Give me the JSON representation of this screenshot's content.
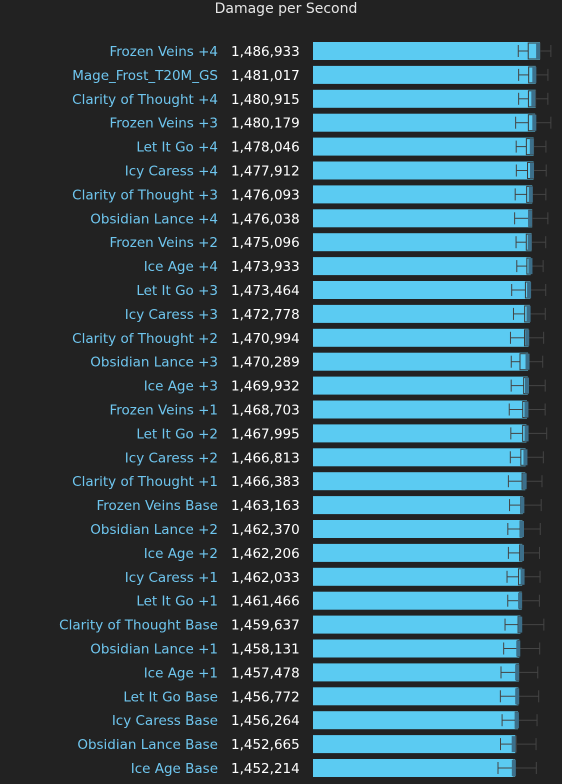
{
  "chart_data": {
    "type": "bar",
    "title": "Damage per Second",
    "categories": [
      "Frozen Veins +4",
      "Mage_Frost_T20M_GS",
      "Clarity of Thought +4",
      "Frozen Veins +3",
      "Let It Go +4",
      "Icy Caress +4",
      "Clarity of Thought +3",
      "Obsidian Lance +4",
      "Frozen Veins +2",
      "Ice Age +4",
      "Let It Go +3",
      "Icy Caress +3",
      "Clarity of Thought +2",
      "Obsidian Lance +3",
      "Ice Age +3",
      "Frozen Veins +1",
      "Let It Go +2",
      "Icy Caress +2",
      "Clarity of Thought +1",
      "Frozen Veins Base",
      "Obsidian Lance +2",
      "Ice Age +2",
      "Icy Caress +1",
      "Let It Go +1",
      "Clarity of Thought Base",
      "Obsidian Lance +1",
      "Ice Age +1",
      "Let It Go Base",
      "Icy Caress Base",
      "Obsidian Lance Base",
      "Ice Age Base"
    ],
    "values": [
      1486933,
      1481017,
      1480915,
      1480179,
      1478046,
      1477912,
      1476093,
      1476038,
      1475096,
      1473933,
      1473464,
      1472778,
      1470994,
      1470289,
      1469932,
      1468703,
      1467995,
      1466813,
      1466383,
      1463163,
      1462370,
      1462206,
      1462033,
      1461466,
      1459637,
      1458131,
      1457478,
      1456772,
      1456264,
      1452665,
      1452214
    ],
    "value_labels": [
      "1,486,933",
      "1,481,017",
      "1,480,915",
      "1,480,179",
      "1,478,046",
      "1,477,912",
      "1,476,093",
      "1,476,038",
      "1,475,096",
      "1,473,933",
      "1,473,464",
      "1,472,778",
      "1,470,994",
      "1,470,289",
      "1,469,932",
      "1,468,703",
      "1,467,995",
      "1,466,813",
      "1,466,383",
      "1,463,163",
      "1,462,370",
      "1,462,206",
      "1,462,033",
      "1,461,466",
      "1,459,637",
      "1,458,131",
      "1,457,478",
      "1,456,772",
      "1,456,264",
      "1,452,665",
      "1,452,214"
    ],
    "box_low": [
      1456600,
      1457100,
      1457100,
      1452900,
      1453700,
      1453900,
      1452300,
      1451500,
      1453500,
      1454500,
      1447400,
      1449900,
      1445700,
      1446800,
      1446700,
      1444000,
      1446200,
      1445500,
      1442800,
      1444400,
      1442000,
      1442800,
      1440900,
      1441900,
      1438100,
      1436200,
      1432500,
      1431600,
      1434000,
      1431800,
      1428300
    ],
    "box_q1": [
      1470500,
      1471100,
      1470800,
      1470700,
      1467900,
      1469500,
      1468300,
      1471200,
      1467800,
      1468600,
      1466600,
      1465500,
      1465300,
      1459000,
      1464100,
      1462800,
      1462700,
      1460200,
      1461900,
      1459900,
      1459200,
      1458500,
      1457000,
      1458300,
      1456300,
      1456000,
      1454300,
      1454800,
      1452400,
      1452800,
      1449600
    ],
    "box_med": [
      1484300,
      1479000,
      1477600,
      1479000,
      1475500,
      1475800,
      1474100,
      1473100,
      1472600,
      1473600,
      1471700,
      1471000,
      1469100,
      1469500,
      1468800,
      1468000,
      1468200,
      1466600,
      1465500,
      1462300,
      1461800,
      1461800,
      1462600,
      1459100,
      1459300,
      1456600,
      1455000,
      1455100,
      1454700,
      1450200,
      1450400
    ],
    "box_q3": [
      1486900,
      1481000,
      1480900,
      1480200,
      1478000,
      1477900,
      1476100,
      1476000,
      1475100,
      1473900,
      1473500,
      1472800,
      1471000,
      1470300,
      1469900,
      1468700,
      1468000,
      1466800,
      1466400,
      1463200,
      1462400,
      1462200,
      1462000,
      1461500,
      1459600,
      1458100,
      1457500,
      1456800,
      1456300,
      1452700,
      1452200
    ],
    "box_high": [
      1502100,
      1498000,
      1497900,
      1502100,
      1495200,
      1495600,
      1495100,
      1497900,
      1494900,
      1491300,
      1494900,
      1494300,
      1492000,
      1490700,
      1494200,
      1494100,
      1496300,
      1491600,
      1489700,
      1488600,
      1487300,
      1486200,
      1487000,
      1486100,
      1492300,
      1486500,
      1483800,
      1485100,
      1482800,
      1481400,
      1481800
    ],
    "xlim": [
      1170000,
      1535000
    ],
    "grid": false,
    "legend": "none"
  }
}
